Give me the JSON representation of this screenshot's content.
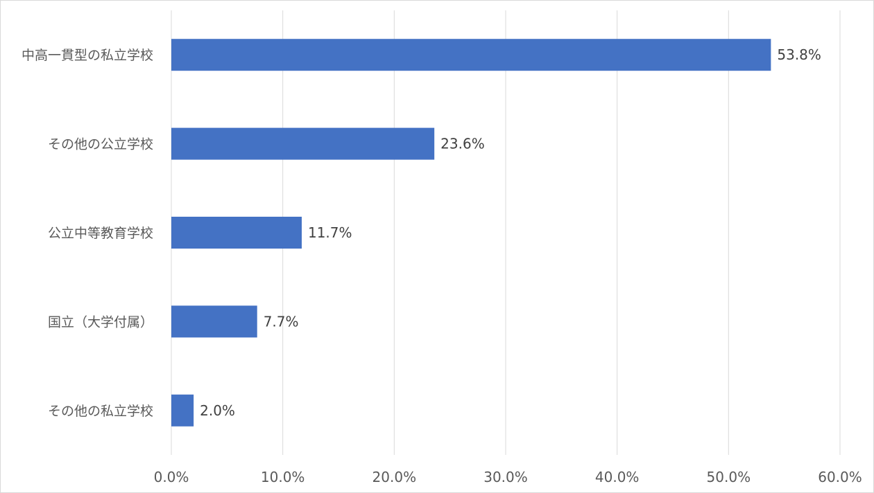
{
  "chart_data": {
    "type": "bar",
    "orientation": "horizontal",
    "categories": [
      "中高一貫型の私立学校",
      "その他の公立学校",
      "公立中等教育学校",
      "国立（大学付属）",
      "その他の私立学校"
    ],
    "values": [
      53.8,
      23.6,
      11.7,
      7.7,
      2.0
    ],
    "data_labels": [
      "53.8%",
      "23.6%",
      "11.7%",
      "7.7%",
      "2.0%"
    ],
    "x_ticks": [
      "0.0%",
      "10.0%",
      "20.0%",
      "30.0%",
      "40.0%",
      "50.0%",
      "60.0%"
    ],
    "xlim": [
      0,
      60
    ],
    "title": "",
    "xlabel": "",
    "ylabel": "",
    "grid": "vertical",
    "legend": "none",
    "bar_color": "#4472C4",
    "grid_color": "#d9d9d9"
  }
}
